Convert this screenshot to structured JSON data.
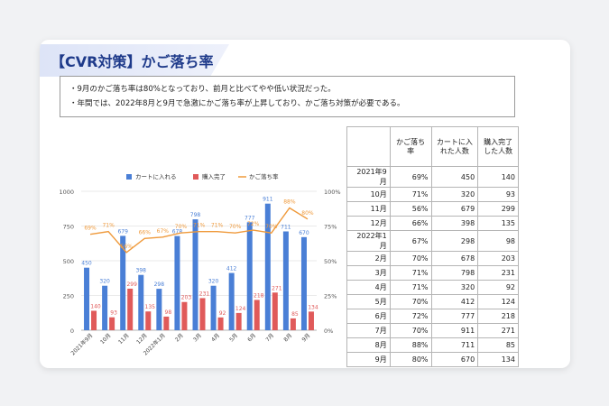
{
  "title": "【CVR対策】かご落ち率",
  "summary": [
    "・9月のかご落ち率は80%となっており、前月と比べてやや低い状況だった。",
    "・年間では、2022年8月と9月で急激にかご落ち率が上昇しており、かご落ち対策が必要である。"
  ],
  "colors": {
    "cart": "#4a7fd6",
    "purchase": "#e05a5a",
    "rate": "#ef9a3c"
  },
  "table": {
    "headers": [
      "",
      "かご落ち率",
      "カートに入れた人数",
      "購入完了した人数"
    ],
    "rows": [
      [
        "2021年9月",
        "69%",
        "450",
        "140"
      ],
      [
        "10月",
        "71%",
        "320",
        "93"
      ],
      [
        "11月",
        "56%",
        "679",
        "299"
      ],
      [
        "12月",
        "66%",
        "398",
        "135"
      ],
      [
        "2022年1月",
        "67%",
        "298",
        "98"
      ],
      [
        "2月",
        "70%",
        "678",
        "203"
      ],
      [
        "3月",
        "71%",
        "798",
        "231"
      ],
      [
        "4月",
        "71%",
        "320",
        "92"
      ],
      [
        "5月",
        "70%",
        "412",
        "124"
      ],
      [
        "6月",
        "72%",
        "777",
        "218"
      ],
      [
        "7月",
        "70%",
        "911",
        "271"
      ],
      [
        "8月",
        "88%",
        "711",
        "85"
      ],
      [
        "9月",
        "80%",
        "670",
        "134"
      ]
    ]
  },
  "chart_data": {
    "type": "bar",
    "categories": [
      "2021年9月",
      "10月",
      "11月",
      "12月",
      "2022年1月",
      "2月",
      "3月",
      "4月",
      "5月",
      "6月",
      "7月",
      "8月",
      "9月"
    ],
    "series": [
      {
        "name": "カートに入れる",
        "type": "bar",
        "axis": "left",
        "values": [
          450,
          320,
          679,
          398,
          298,
          678,
          798,
          320,
          412,
          777,
          911,
          711,
          670
        ]
      },
      {
        "name": "購入完了",
        "type": "bar",
        "axis": "left",
        "values": [
          140,
          93,
          299,
          135,
          98,
          203,
          231,
          92,
          124,
          218,
          271,
          85,
          134
        ]
      },
      {
        "name": "かご落ち率",
        "type": "line",
        "axis": "right",
        "values": [
          69,
          71,
          56,
          66,
          67,
          70,
          71,
          71,
          70,
          72,
          70,
          88,
          80
        ]
      }
    ],
    "ylim": [
      0,
      1000
    ],
    "yticks": [
      "0",
      "250",
      "500",
      "750",
      "1000"
    ],
    "y2lim": [
      0,
      100
    ],
    "y2ticks": [
      "0%",
      "25%",
      "50%",
      "75%",
      "100%"
    ],
    "legend": "top"
  }
}
